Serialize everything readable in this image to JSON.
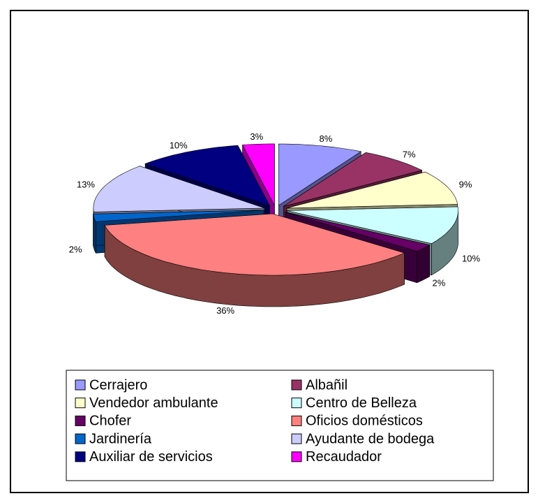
{
  "chart_data": {
    "type": "pie",
    "three_d": true,
    "exploded": true,
    "legend": "bottom",
    "categories": [
      "Cerrajero",
      "Albañil",
      "Vendedor ambulante",
      "Centro de Belleza",
      "Chofer",
      "Oficios domésticos",
      "Jardinería",
      "Ayudante de bodega",
      "Auxiliar de servicios",
      "Recaudador"
    ],
    "values": [
      8,
      7,
      9,
      10,
      2,
      36,
      2,
      13,
      10,
      3
    ],
    "value_labels": [
      "8%",
      "7%",
      "9%",
      "10%",
      "2%",
      "36%",
      "2%",
      "13%",
      "10%",
      "3%"
    ],
    "colors": [
      "#9999ff",
      "#993366",
      "#ffffcc",
      "#ccffff",
      "#660066",
      "#ff8080",
      "#0066cc",
      "#ccccff",
      "#000080",
      "#ff00ff"
    ]
  }
}
